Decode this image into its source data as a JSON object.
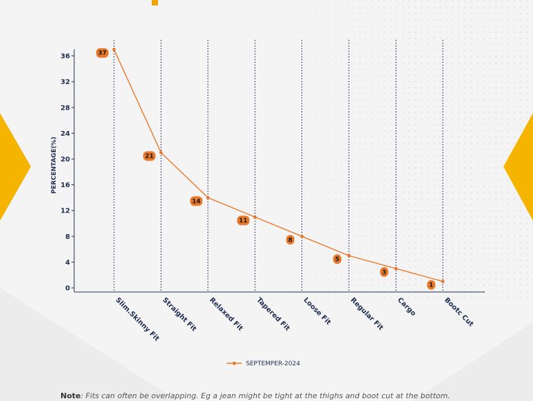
{
  "colors": {
    "accent": "#f0a500",
    "line": "#e8792b",
    "axis": "#1f2d50",
    "grid": "#1f2d50",
    "label_bg": "#e8792b"
  },
  "chart_data": {
    "type": "line",
    "categories": [
      "Slim.Skinny Fit",
      "Straight Fit",
      "Relaxed Fit",
      "Tapered Fit",
      "Loose Fit",
      "Regular Fit",
      "Cargo",
      "Bootc Cut"
    ],
    "series": [
      {
        "name": "SEPTEMPER-2024",
        "values": [
          37,
          21,
          14,
          11,
          8,
          5,
          3,
          1
        ]
      }
    ],
    "data_labels": [
      "37",
      "21",
      "14",
      "11",
      "8",
      "5",
      "3",
      "1"
    ],
    "ylabel": "PERCENTAGE(%)",
    "xlabel": "",
    "ylim": [
      0,
      38
    ],
    "yticks": [
      "0",
      "4",
      "8",
      "12",
      "16",
      "20",
      "24",
      "28",
      "32",
      "36"
    ],
    "ytick_values": [
      0,
      4,
      8,
      12,
      16,
      20,
      24,
      28,
      32,
      36
    ],
    "grid": "vertical dashed",
    "legend": "bottom-center"
  },
  "note": {
    "label": "Note",
    "text": ": Fits can often be overlapping. Eg a jean might be tight at the thighs and boot cut at the bottom."
  }
}
